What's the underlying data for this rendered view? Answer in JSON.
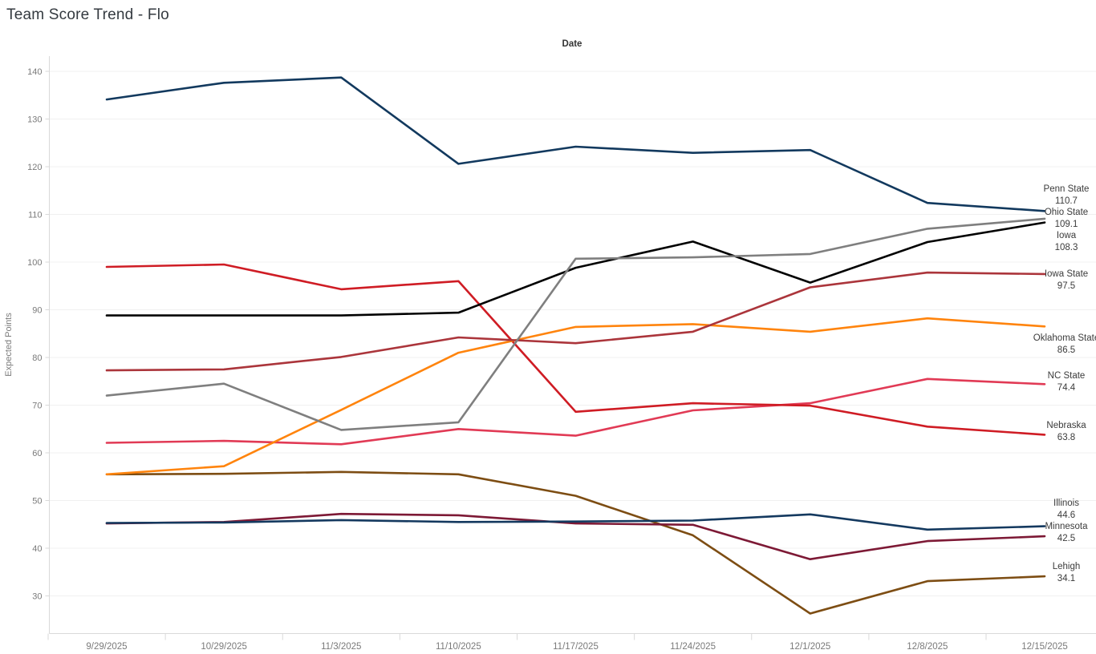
{
  "title": "Team Score Trend - Flo",
  "chart_data": {
    "type": "line",
    "title": "Team Score Trend - Flo",
    "xlabel": "Date",
    "ylabel": "Expected Points",
    "x": [
      "9/29/2025",
      "10/29/2025",
      "11/3/2025",
      "11/10/2025",
      "11/17/2025",
      "11/24/2025",
      "12/1/2025",
      "12/8/2025",
      "12/15/2025"
    ],
    "y_ticks": [
      30,
      40,
      50,
      60,
      70,
      80,
      90,
      100,
      110,
      120,
      130,
      140
    ],
    "ylim": [
      22,
      145
    ],
    "grid": "horizontal-only",
    "legend_position": "right-end-labels",
    "series": [
      {
        "name": "Penn State",
        "color": "#12395e",
        "end_label": "110.7",
        "values": [
          134.1,
          137.6,
          138.7,
          120.6,
          124.2,
          122.9,
          123.5,
          112.4,
          110.7
        ]
      },
      {
        "name": "Ohio State",
        "color": "#7f7f7f",
        "end_label": "109.1",
        "values": [
          72.0,
          74.5,
          64.8,
          66.4,
          100.7,
          101.0,
          101.7,
          107.0,
          109.1
        ]
      },
      {
        "name": "Iowa",
        "color": "#000000",
        "end_label": "108.3",
        "values": [
          88.8,
          88.8,
          88.8,
          89.4,
          98.8,
          104.3,
          95.7,
          104.2,
          108.3
        ]
      },
      {
        "name": "Iowa State",
        "color": "#ab353b",
        "end_label": "97.5",
        "values": [
          77.3,
          77.5,
          80.1,
          84.2,
          83.0,
          85.4,
          94.7,
          97.8,
          97.5
        ]
      },
      {
        "name": "Oklahoma State",
        "color": "#ff840d",
        "end_label": "86.5",
        "values": [
          55.5,
          57.2,
          69.0,
          81.0,
          86.4,
          87.0,
          85.4,
          88.2,
          86.5
        ]
      },
      {
        "name": "NC State",
        "color": "#e13a55",
        "end_label": "74.4",
        "values": [
          62.1,
          62.5,
          61.8,
          65.0,
          63.6,
          68.9,
          70.4,
          75.5,
          74.4
        ]
      },
      {
        "name": "Nebraska",
        "color": "#cf1c24",
        "end_label": "63.8",
        "values": [
          99.0,
          99.5,
          94.3,
          96.0,
          68.6,
          70.4,
          69.9,
          65.5,
          63.8
        ]
      },
      {
        "name": "Illinois",
        "color": "#14395f",
        "end_label": "44.6",
        "values": [
          45.3,
          45.4,
          45.9,
          45.5,
          45.6,
          45.8,
          47.1,
          43.9,
          44.6
        ]
      },
      {
        "name": "Minnesota",
        "color": "#7d1935",
        "end_label": "42.5",
        "values": [
          45.2,
          45.5,
          47.2,
          46.9,
          45.2,
          44.9,
          37.7,
          41.5,
          42.5
        ]
      },
      {
        "name": "Lehigh",
        "color": "#7d4d13",
        "end_label": "34.1",
        "values": [
          55.5,
          55.6,
          56.0,
          55.5,
          51.0,
          42.7,
          26.3,
          33.1,
          34.1
        ]
      }
    ]
  }
}
